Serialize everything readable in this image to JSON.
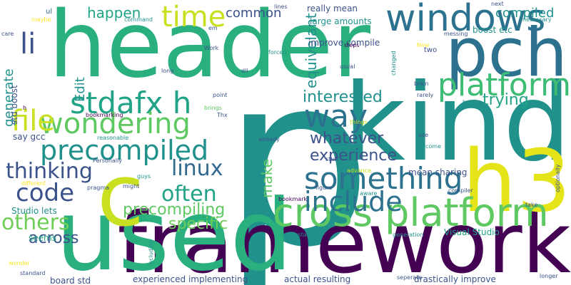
{
  "palette": [
    "#440154",
    "#3b528b",
    "#21918c",
    "#5ec962",
    "#fde725"
  ],
  "words": [
    {
      "text": "header",
      "color": "#2ab07f"
    },
    {
      "text": "p",
      "color": "#21918c"
    },
    {
      "text": "kind",
      "color": "#21918c"
    },
    {
      "text": "framework",
      "color": "#440154"
    },
    {
      "text": "used",
      "color": "#2ab07f"
    },
    {
      "text": "c",
      "color": "#c8e020"
    },
    {
      "text": "h3",
      "color": "#e5e419"
    },
    {
      "text": "pch",
      "color": "#2c728e"
    },
    {
      "text": "cross platform",
      "color": "#5ec962"
    },
    {
      "text": "windows",
      "color": "#2c728e"
    },
    {
      "text": "platform",
      "color": "#3dbc74"
    },
    {
      "text": "stdafx h",
      "color": "#20a386"
    },
    {
      "text": "wondering",
      "color": "#5ec962"
    },
    {
      "text": "time",
      "color": "#c8e020"
    },
    {
      "text": "li",
      "color": "#3b528b"
    },
    {
      "text": "file",
      "color": "#c8e020"
    },
    {
      "text": "way",
      "color": "#2c728e"
    },
    {
      "text": "precompiled",
      "color": "#21918c"
    },
    {
      "text": "something",
      "color": "#2c728e"
    },
    {
      "text": "include",
      "color": "#2c728e"
    },
    {
      "text": "code",
      "color": "#3b528b"
    },
    {
      "text": "thinking",
      "color": "#3b528b"
    },
    {
      "text": "linux",
      "color": "#31688e"
    },
    {
      "text": "often",
      "color": "#20a386"
    },
    {
      "text": "others",
      "color": "#6ece58"
    },
    {
      "text": "precompiling",
      "color": "#5ec962"
    },
    {
      "text": "specific",
      "color": "#6ece58"
    },
    {
      "text": "across",
      "color": "#3b528b"
    },
    {
      "text": "whatever",
      "color": "#3b528b"
    },
    {
      "text": "interested",
      "color": "#21918c"
    },
    {
      "text": "trying",
      "color": "#20a386"
    },
    {
      "text": "experience",
      "color": "#3b528b"
    },
    {
      "text": "happen",
      "color": "#20a386"
    },
    {
      "text": "common",
      "color": "#3b528b"
    },
    {
      "text": "compiled",
      "color": "#21918c"
    },
    {
      "text": "equivelant",
      "color": "#21918c"
    },
    {
      "text": "make",
      "color": "#5ec962"
    },
    {
      "text": "Edit",
      "color": "#21918c"
    },
    {
      "text": "generate",
      "color": "#21918c"
    },
    {
      "text": "mean sharing",
      "color": "#3b528b"
    },
    {
      "text": "Visual Studio",
      "color": "#20a386"
    },
    {
      "text": "drastically improve",
      "color": "#3b528b"
    },
    {
      "text": "experienced implementing",
      "color": "#3b528b"
    },
    {
      "text": "actual resulting",
      "color": "#3b528b"
    },
    {
      "text": "board std",
      "color": "#3b528b"
    },
    {
      "text": "Studio lets",
      "color": "#21918c"
    },
    {
      "text": "say gcc",
      "color": "#3b528b"
    },
    {
      "text": "std boost",
      "color": "#3b528b"
    },
    {
      "text": "really mean",
      "color": "#3b528b"
    },
    {
      "text": "large amounts",
      "color": "#21918c"
    },
    {
      "text": "boost etc",
      "color": "#21918c"
    },
    {
      "text": "improve compile",
      "color": "#3b528b"
    },
    {
      "text": "seems",
      "color": "#20a386"
    },
    {
      "text": "ul",
      "color": "#31688e"
    },
    {
      "text": "maybe",
      "color": "#fde725"
    },
    {
      "text": "care",
      "color": "#3b528b"
    },
    {
      "text": "command",
      "color": "#21918c"
    },
    {
      "text": "lines",
      "color": "#3b528b"
    },
    {
      "text": "em",
      "color": "#3b528b"
    },
    {
      "text": "Work",
      "color": "#3b528b"
    },
    {
      "text": "forced",
      "color": "#21918c"
    },
    {
      "text": "steps",
      "color": "#440154"
    },
    {
      "text": "Now",
      "color": "#fde725"
    },
    {
      "text": "two",
      "color": "#3b528b"
    },
    {
      "text": "changed",
      "color": "#21918c"
    },
    {
      "text": "messing",
      "color": "#3b528b"
    },
    {
      "text": "next",
      "color": "#3b528b"
    },
    {
      "text": "necessary",
      "color": "#21918c"
    },
    {
      "text": "dll",
      "color": "#3b528b"
    },
    {
      "text": "long",
      "color": "#3b528b"
    },
    {
      "text": "usual",
      "color": "#3b528b"
    },
    {
      "text": "brain",
      "color": "#3b528b"
    },
    {
      "text": "rarely",
      "color": "#3b528b"
    },
    {
      "text": "help",
      "color": "#21918c"
    },
    {
      "text": "point",
      "color": "#3b528b"
    },
    {
      "text": "brings",
      "color": "#5ec962"
    },
    {
      "text": "Thx",
      "color": "#3b528b"
    },
    {
      "text": "things",
      "color": "#c8e020"
    },
    {
      "text": "bookmarking",
      "color": "#440154"
    },
    {
      "text": "tasks",
      "color": "#21918c"
    },
    {
      "text": "already",
      "color": "#3b528b"
    },
    {
      "text": "use",
      "color": "#3b528b"
    },
    {
      "text": "come",
      "color": "#21918c"
    },
    {
      "text": "reasonable",
      "color": "#21918c"
    },
    {
      "text": "Personally",
      "color": "#3b528b"
    },
    {
      "text": "h",
      "color": "#440154"
    },
    {
      "text": "stuff",
      "color": "#3b528b"
    },
    {
      "text": "advance",
      "color": "#c8e020"
    },
    {
      "text": "guys",
      "color": "#21918c"
    },
    {
      "text": "different",
      "color": "#fde725"
    },
    {
      "text": "pragma",
      "color": "#3b528b"
    },
    {
      "text": "might",
      "color": "#3b528b"
    },
    {
      "text": "bookmark",
      "color": "#440154"
    },
    {
      "text": "figure",
      "color": "#3b528b"
    },
    {
      "text": "aware",
      "color": "#21918c"
    },
    {
      "text": "compiler",
      "color": "#3b528b"
    },
    {
      "text": "take",
      "color": "#3b528b"
    },
    {
      "text": "optionally",
      "color": "#3b528b"
    },
    {
      "text": "wonder",
      "color": "#fde725"
    },
    {
      "text": "including",
      "color": "#21918c"
    },
    {
      "text": "understanding",
      "color": "#21918c"
    },
    {
      "text": "generation",
      "color": "#21918c"
    },
    {
      "text": "longer",
      "color": "#3b528b"
    },
    {
      "text": "standard",
      "color": "#3b528b"
    },
    {
      "text": "seperate",
      "color": "#3b528b"
    }
  ]
}
